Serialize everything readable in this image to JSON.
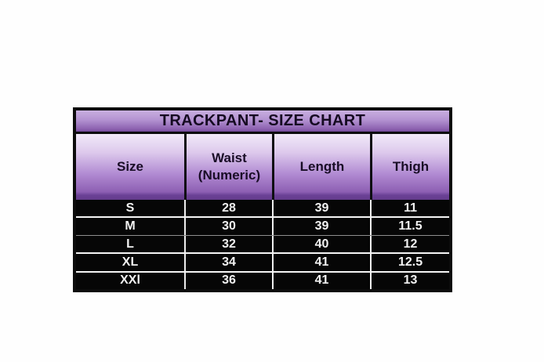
{
  "chart_data": {
    "type": "table",
    "title": "TRACKPANT- SIZE CHART",
    "columns": [
      "Size",
      "Waist (Numeric)",
      "Length",
      "Thigh"
    ],
    "columns_display": [
      "Size",
      "Waist\n(Numeric)",
      "Length",
      "Thigh"
    ],
    "rows": [
      [
        "S",
        "28",
        "39",
        "11"
      ],
      [
        "M",
        "30",
        "39",
        "11.5"
      ],
      [
        "L",
        "32",
        "40",
        "12"
      ],
      [
        "XL",
        "34",
        "41",
        "12.5"
      ],
      [
        "XXl",
        "36",
        "41",
        "13"
      ]
    ]
  },
  "colors": {
    "title_gradient_top": "#c9afe0",
    "title_gradient_bottom": "#6f4897",
    "header_gradient_top": "#f1eaf9",
    "header_gradient_bottom": "#643c8c",
    "header_text": "#190d26",
    "data_background": "#060606",
    "data_text": "#f2f2f2",
    "divider_white": "#f5f5f5",
    "table_border": "#0c0c0c",
    "page_background": "#fefefe"
  }
}
